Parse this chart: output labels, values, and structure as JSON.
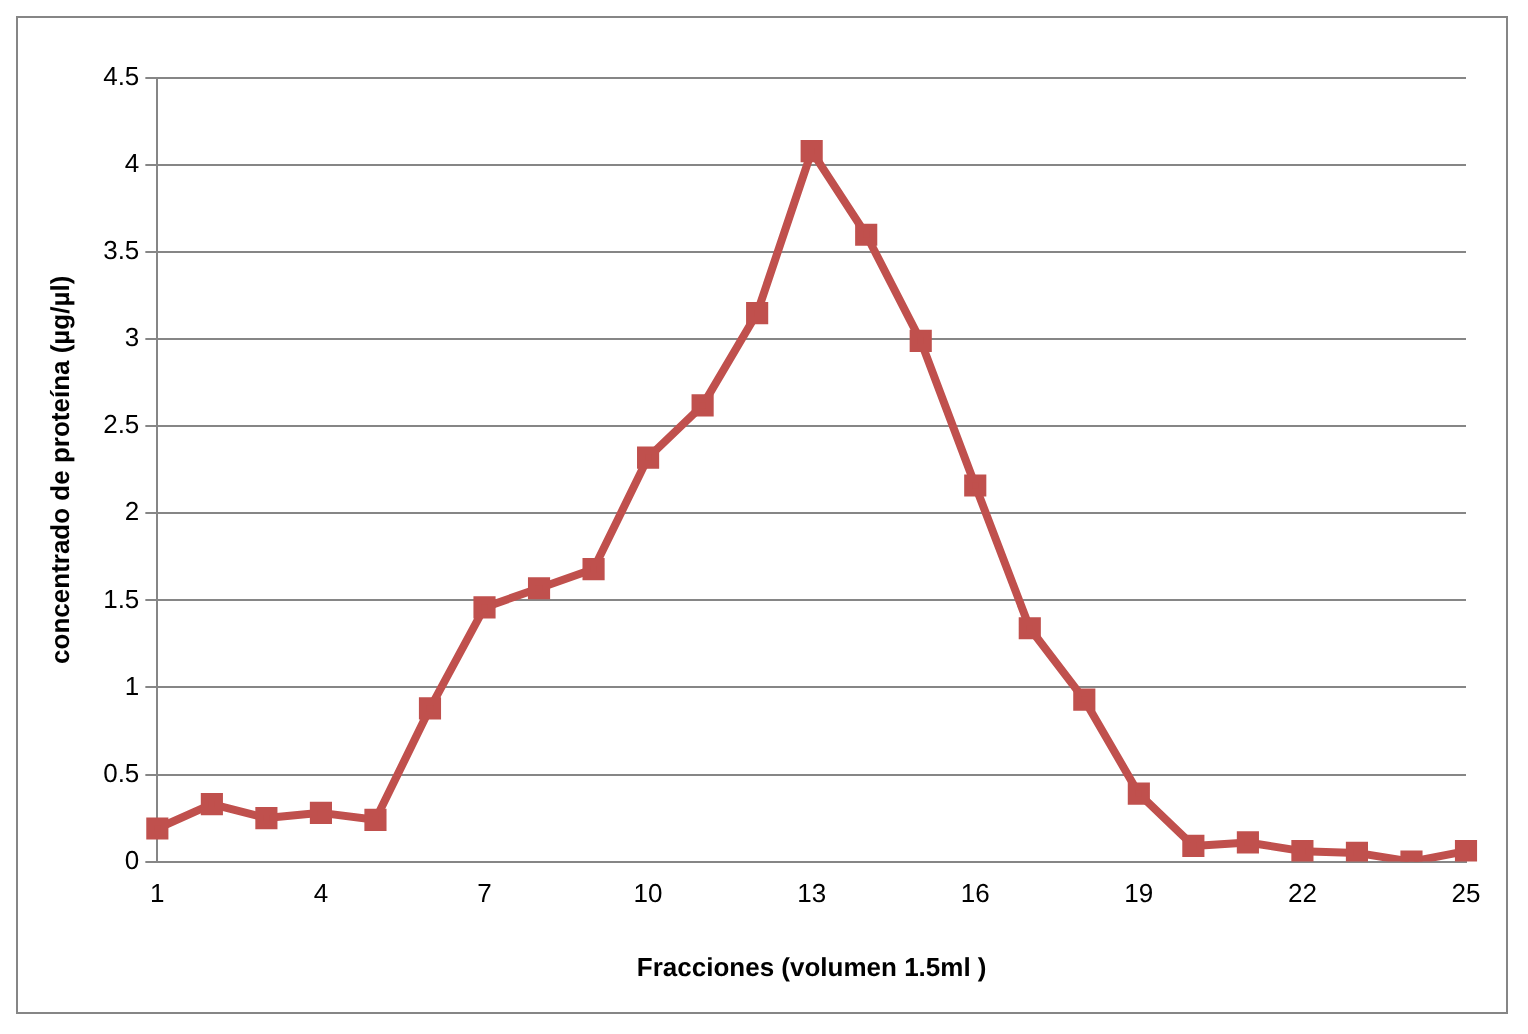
{
  "chart_data": {
    "type": "line",
    "xlabel": "Fracciones (volumen 1.5ml )",
    "ylabel": "concentrado de proteína (µg/µl)",
    "categories": [
      "1",
      null,
      null,
      "4",
      null,
      null,
      "7",
      null,
      null,
      "10",
      null,
      null,
      "13",
      null,
      null,
      "16",
      null,
      null,
      "19",
      null,
      null,
      "22",
      null,
      null,
      "25"
    ],
    "series": [
      {
        "color": "#c0504d",
        "values": [
          0.19,
          0.33,
          0.25,
          0.28,
          0.24,
          0.88,
          1.46,
          1.57,
          1.68,
          2.32,
          2.62,
          3.15,
          4.08,
          3.6,
          2.99,
          2.16,
          1.34,
          0.93,
          0.39,
          0.09,
          0.11,
          0.06,
          0.05,
          0.0,
          0.06
        ]
      }
    ],
    "ylim": [
      0,
      4.5
    ],
    "yticks": [
      0,
      0.5,
      1,
      1.5,
      2,
      2.5,
      3,
      3.5,
      4,
      4.5
    ],
    "grid": "y",
    "legend": false,
    "marker": "square",
    "line_style": "solid"
  }
}
